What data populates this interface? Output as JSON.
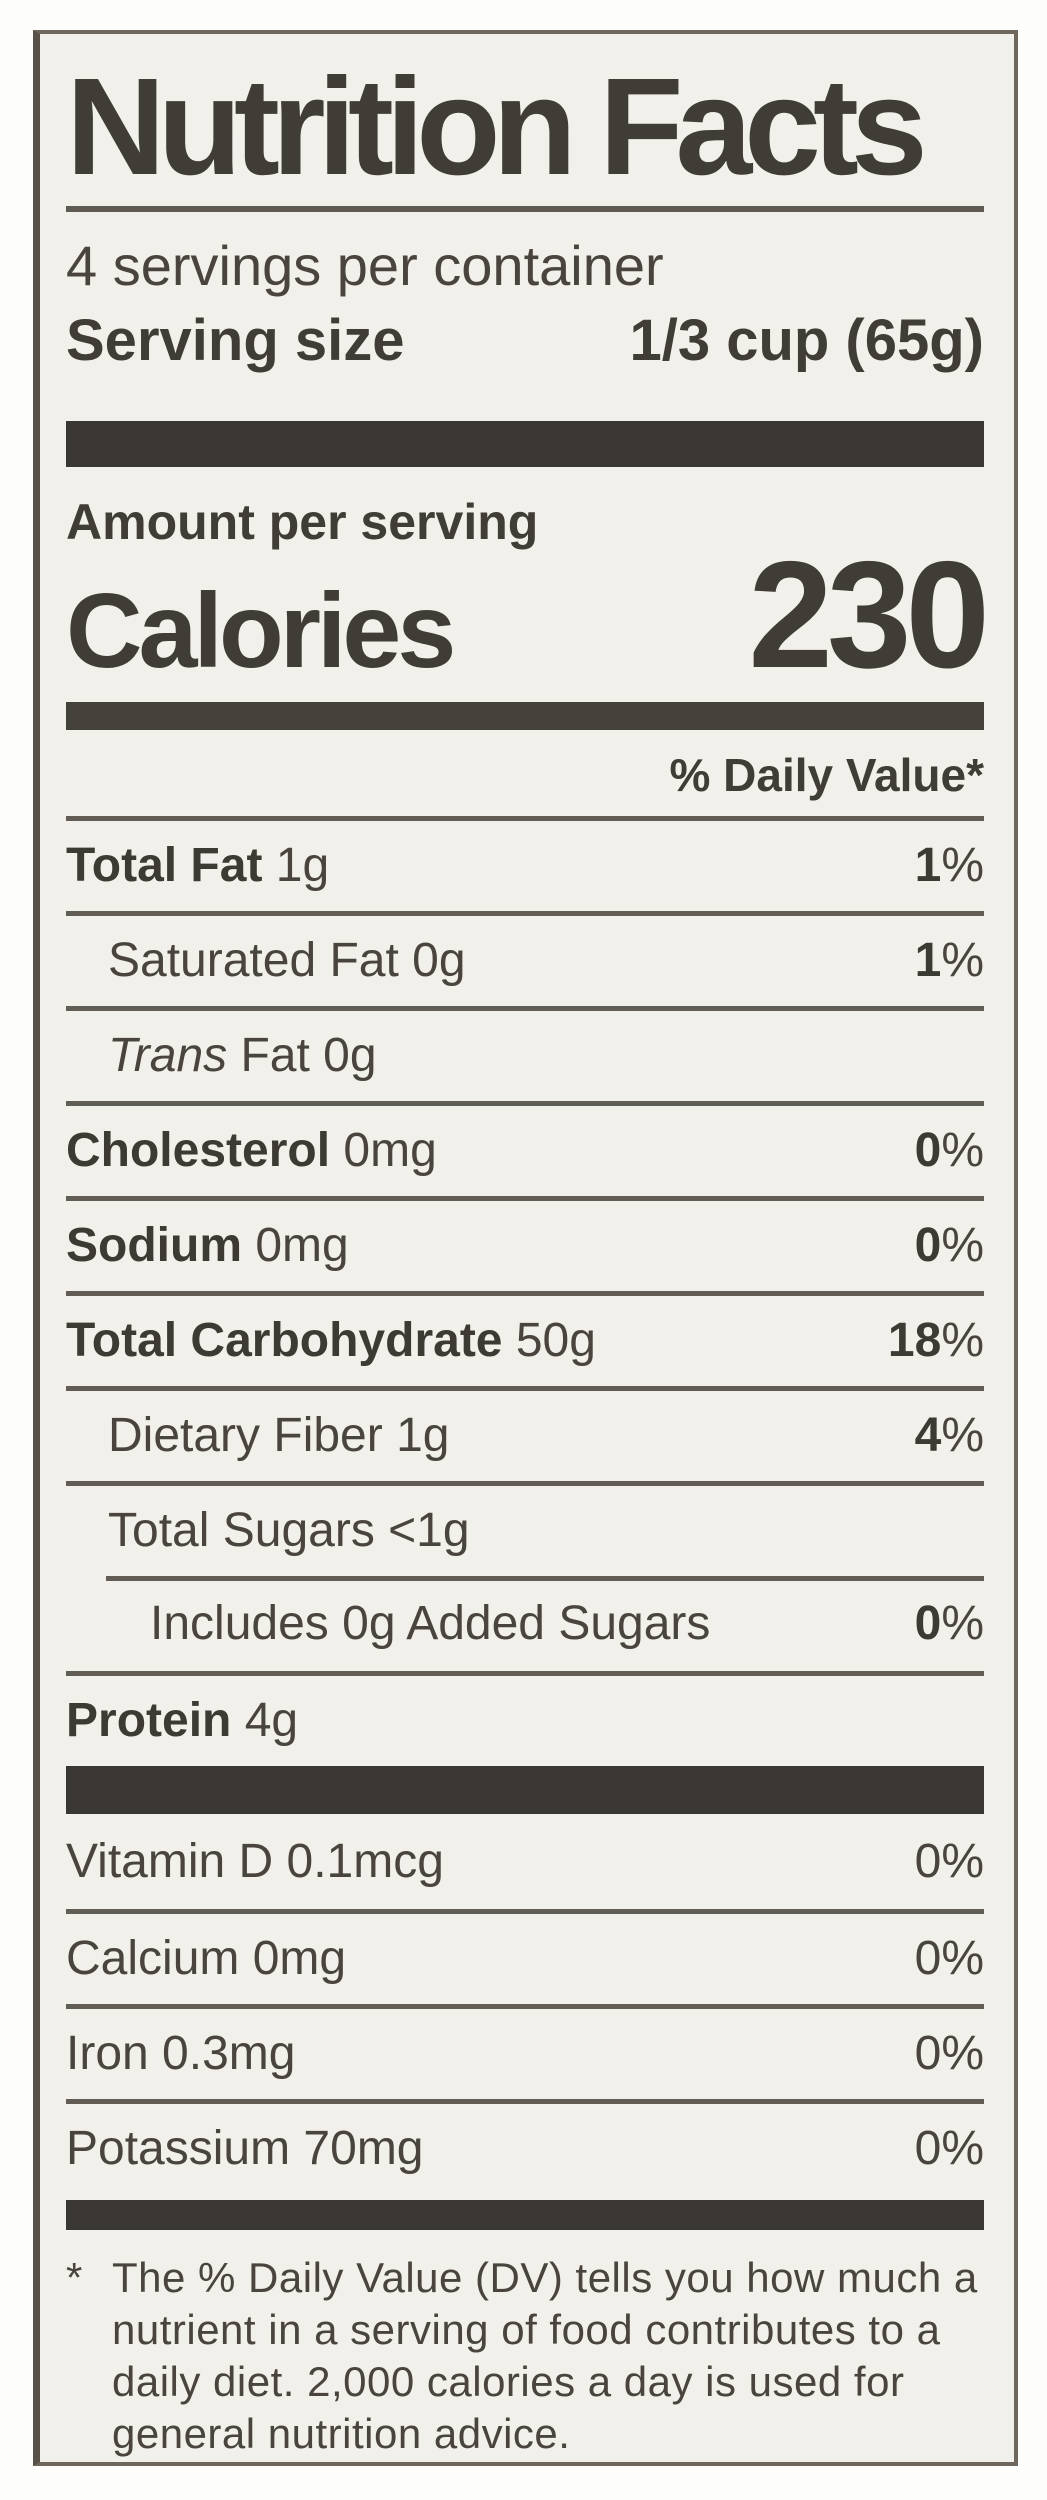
{
  "label": {
    "title": "Nutrition Facts",
    "servings_per_container": "4 servings per container",
    "serving_size_label": "Serving size",
    "serving_size_value": "1/3 cup (65g)",
    "amount_per_serving": "Amount per serving",
    "calories_label": "Calories",
    "calories_value": "230",
    "daily_value_header": "% Daily Value*",
    "colors": {
      "paper": "#f2f0ea",
      "ink": "#45413b",
      "bar": "#3b3833"
    },
    "rows": [
      {
        "name": "Total Fat",
        "amount": "1g",
        "dv": "1",
        "pct": "%",
        "name_bold": true,
        "dv_bold": true,
        "indent": 0,
        "sep": "full"
      },
      {
        "name": "Saturated Fat",
        "amount": "0g",
        "dv": "1",
        "pct": "%",
        "name_bold": false,
        "dv_bold": true,
        "indent": 1,
        "sep": "full"
      },
      {
        "italic_prefix": "Trans",
        "name": " Fat",
        "amount": "0g",
        "dv": "",
        "pct": "",
        "name_bold": false,
        "dv_bold": false,
        "indent": 1,
        "sep": "full"
      },
      {
        "name": "Cholesterol",
        "amount": "0mg",
        "dv": "0",
        "pct": "%",
        "name_bold": true,
        "dv_bold": true,
        "indent": 0,
        "sep": "full"
      },
      {
        "name": "Sodium",
        "amount": "0mg",
        "dv": "0",
        "pct": "%",
        "name_bold": true,
        "dv_bold": true,
        "indent": 0,
        "sep": "full"
      },
      {
        "name": "Total Carbohydrate",
        "amount": "50g",
        "dv": "18",
        "pct": "%",
        "name_bold": true,
        "dv_bold": true,
        "indent": 0,
        "sep": "full"
      },
      {
        "name": "Dietary Fiber",
        "amount": "1g",
        "dv": "4",
        "pct": "%",
        "name_bold": false,
        "dv_bold": true,
        "indent": 1,
        "sep": "full"
      },
      {
        "name": "Total Sugars",
        "amount": "<1g",
        "dv": "",
        "pct": "",
        "name_bold": false,
        "dv_bold": false,
        "indent": 1,
        "sep": "full"
      },
      {
        "name": "Includes 0g Added Sugars",
        "amount": "",
        "dv": "0",
        "pct": "%",
        "name_bold": false,
        "dv_bold": true,
        "indent": 2,
        "sep": "indent"
      },
      {
        "name": "Protein",
        "amount": "4g",
        "dv": "",
        "pct": "",
        "name_bold": true,
        "dv_bold": false,
        "indent": 0,
        "sep": "full"
      }
    ],
    "vitamins": [
      {
        "name": "Vitamin D",
        "amount": "0.1mcg",
        "dv": "0",
        "pct": "%",
        "sep": "none"
      },
      {
        "name": "Calcium",
        "amount": "0mg",
        "dv": "0",
        "pct": "%",
        "sep": "full"
      },
      {
        "name": "Iron",
        "amount": "0.3mg",
        "dv": "0",
        "pct": "%",
        "sep": "full"
      },
      {
        "name": "Potassium",
        "amount": "70mg",
        "dv": "0",
        "pct": "%",
        "sep": "full"
      }
    ],
    "footnote": {
      "marker": "*",
      "text": "The % Daily Value (DV) tells you how much a nutrient in a serving of food contributes to a daily diet. 2,000 calories a day is used for general nutrition advice."
    }
  }
}
